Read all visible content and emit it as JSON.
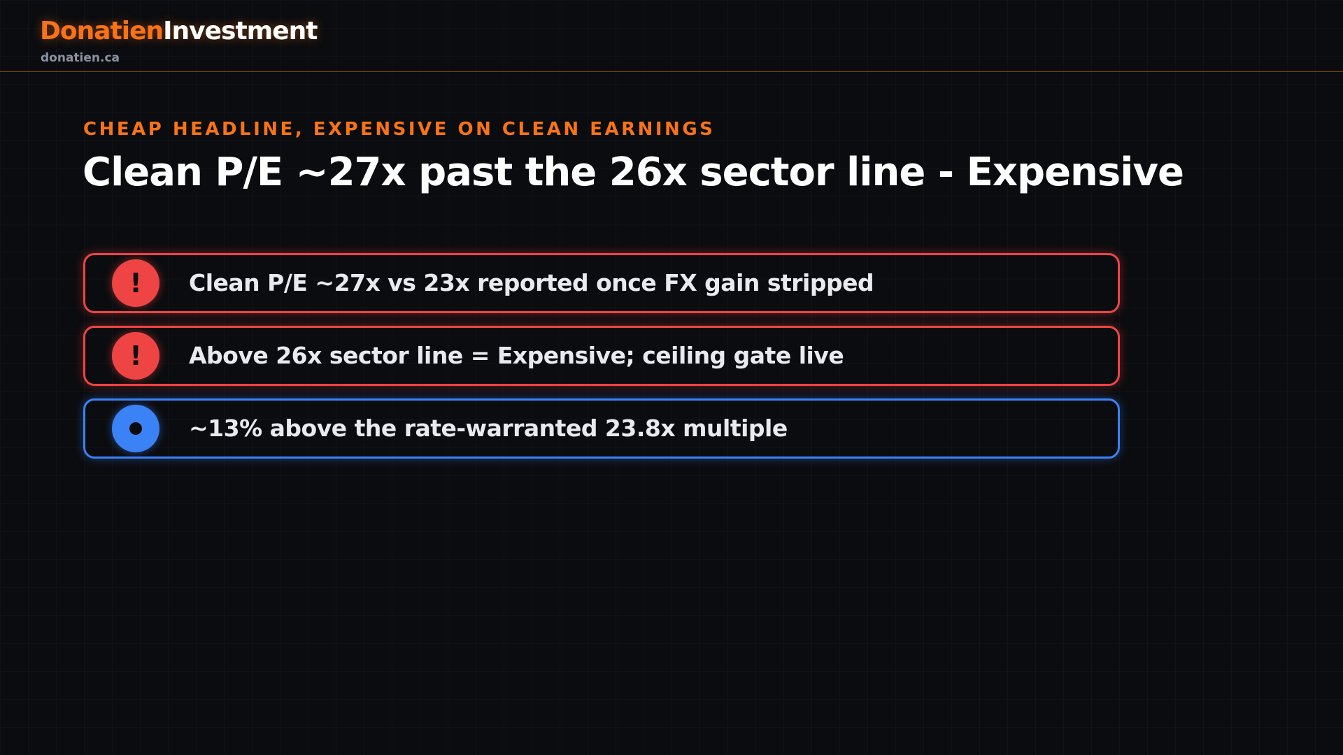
{
  "header": {
    "brand_primary": "Donatien",
    "brand_secondary": "Investment",
    "site": "donatien.ca"
  },
  "kicker": "CHEAP HEADLINE, EXPENSIVE ON CLEAN EARNINGS",
  "title": "Clean P/E ~27x past the 26x sector line - Expensive",
  "items": [
    {
      "icon": "!",
      "text": "Clean P/E ~27x vs 23x reported once FX gain stripped",
      "color": "#ef4444"
    },
    {
      "icon": "!",
      "text": "Above 26x sector line = Expensive; ceiling gate live",
      "color": "#ef4444"
    },
    {
      "text": "~13% above the rate-warranted 23.8x multiple",
      "color": "#3b82f6"
    }
  ]
}
